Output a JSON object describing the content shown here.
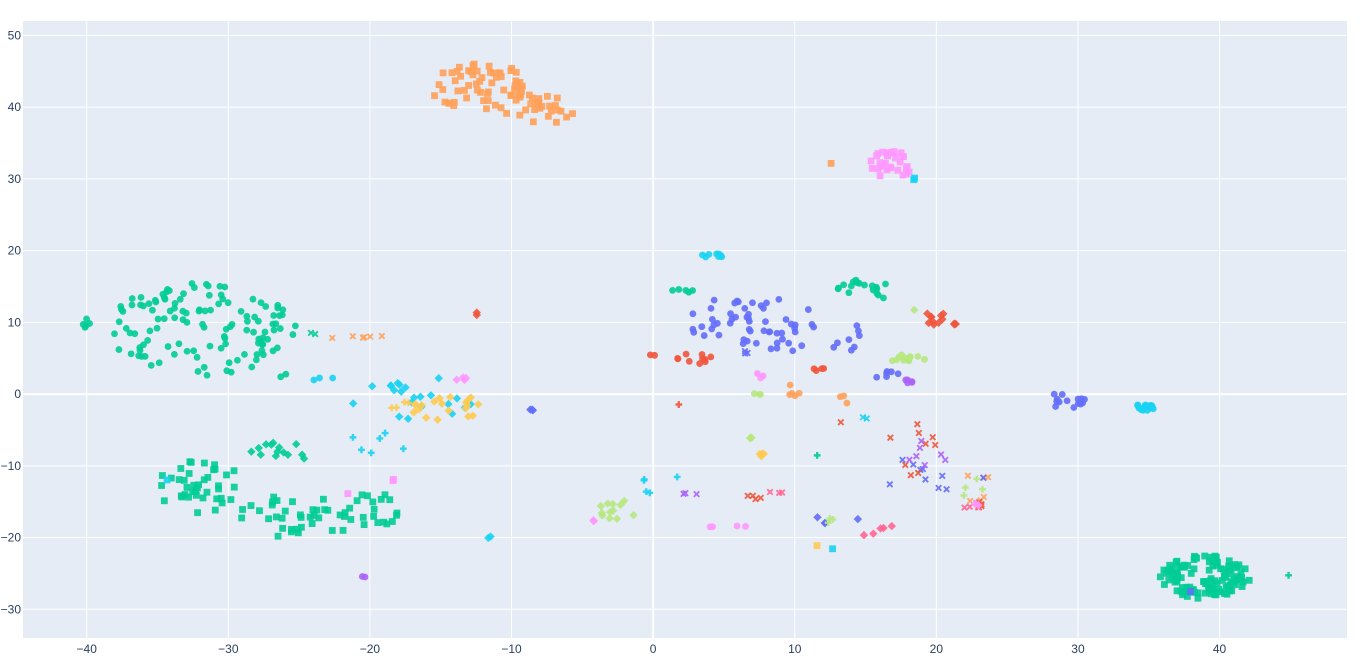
{
  "chart_data": {
    "type": "scatter",
    "xlim": [
      -44.5,
      49
    ],
    "ylim": [
      -34,
      52
    ],
    "xticks": [
      -40,
      -30,
      -20,
      -10,
      0,
      10,
      20,
      30,
      40
    ],
    "yticks": [
      -30,
      -20,
      -10,
      0,
      10,
      20,
      30,
      40,
      50
    ],
    "grid": true,
    "legend": "none",
    "colors": {
      "plot_bg": "#e5ecf6",
      "grid": "#ffffff",
      "tick_text": "#2a3f5f",
      "palette": [
        "#636efa",
        "#ef553b",
        "#00cc96",
        "#ab63fa",
        "#ffa15a",
        "#19d3f3",
        "#ff6692",
        "#b6e880",
        "#ff97ff",
        "#fecb52"
      ]
    },
    "series": [
      {
        "color": "#00cc96",
        "symbol": "circle",
        "clusters": [
          {
            "cx": -32,
            "cy": 9,
            "rx": 6.5,
            "ry": 6.5,
            "n": 110
          },
          {
            "cx": -27,
            "cy": 9,
            "rx": 2.2,
            "ry": 3.5,
            "n": 14
          },
          {
            "cx": -40,
            "cy": 10,
            "rx": 0.6,
            "ry": 0.8,
            "n": 5
          },
          {
            "cx": -26,
            "cy": 2.5,
            "rx": 0.4,
            "ry": 0.4,
            "n": 2
          },
          {
            "cx": 2,
            "cy": 14.3,
            "rx": 0.9,
            "ry": 0.3,
            "n": 5
          },
          {
            "cx": 14,
            "cy": 15,
            "rx": 1.0,
            "ry": 1.0,
            "n": 10
          },
          {
            "cx": 16,
            "cy": 14.5,
            "rx": 0.7,
            "ry": 1.2,
            "n": 8
          }
        ]
      },
      {
        "color": "#00cc96",
        "symbol": "square",
        "clusters": [
          {
            "cx": -32,
            "cy": -13,
            "rx": 3.0,
            "ry": 4.0,
            "n": 40
          },
          {
            "cx": -25,
            "cy": -17,
            "rx": 4.5,
            "ry": 3.0,
            "n": 35
          },
          {
            "cx": -20,
            "cy": -16.5,
            "rx": 2.0,
            "ry": 3.0,
            "n": 20
          },
          {
            "cx": 39,
            "cy": -25.5,
            "rx": 3.2,
            "ry": 3.0,
            "n": 120
          }
        ]
      },
      {
        "color": "#00cc96",
        "symbol": "diamond",
        "clusters": [
          {
            "cx": -26,
            "cy": -8,
            "rx": 2.5,
            "ry": 1.8,
            "n": 14
          }
        ]
      },
      {
        "color": "#00cc96",
        "symbol": "x",
        "clusters": [
          {
            "cx": -24,
            "cy": 8.5,
            "rx": 0.3,
            "ry": 0.2,
            "n": 2
          }
        ]
      },
      {
        "color": "#00cc96",
        "symbol": "cross",
        "clusters": [
          {
            "cx": 44.8,
            "cy": -25.2,
            "rx": 0.1,
            "ry": 0.1,
            "n": 1
          },
          {
            "cx": 11.5,
            "cy": -8.5,
            "rx": 0.2,
            "ry": 0.2,
            "n": 1
          }
        ]
      },
      {
        "color": "#ffa15a",
        "symbol": "square",
        "clusters": [
          {
            "cx": -12.5,
            "cy": 43,
            "rx": 3.5,
            "ry": 3.5,
            "n": 60
          },
          {
            "cx": -9,
            "cy": 40,
            "rx": 2.2,
            "ry": 2.2,
            "n": 18
          },
          {
            "cx": -7,
            "cy": 39.5,
            "rx": 1.5,
            "ry": 1.8,
            "n": 12
          },
          {
            "cx": 12.5,
            "cy": 32,
            "rx": 0.2,
            "ry": 0.2,
            "n": 1
          }
        ]
      },
      {
        "color": "#ffa15a",
        "symbol": "x",
        "clusters": [
          {
            "cx": -21,
            "cy": 8,
            "rx": 2.5,
            "ry": 0.3,
            "n": 6
          },
          {
            "cx": 23,
            "cy": -13,
            "rx": 1.5,
            "ry": 2.5,
            "n": 6
          }
        ]
      },
      {
        "color": "#ff97ff",
        "symbol": "square",
        "clusters": [
          {
            "cx": 16.8,
            "cy": 32,
            "rx": 1.5,
            "ry": 2.0,
            "n": 30
          },
          {
            "cx": -21.5,
            "cy": -14,
            "rx": 0.2,
            "ry": 0.2,
            "n": 1
          },
          {
            "cx": -18.5,
            "cy": -12,
            "rx": 0.2,
            "ry": 0.2,
            "n": 2
          }
        ]
      },
      {
        "color": "#19d3f3",
        "symbol": "square",
        "clusters": [
          {
            "cx": 18.5,
            "cy": 30,
            "rx": 0.3,
            "ry": 0.3,
            "n": 2
          },
          {
            "cx": -34.5,
            "cy": -12,
            "rx": 0.2,
            "ry": 0.2,
            "n": 1
          },
          {
            "cx": 12.5,
            "cy": -21.5,
            "rx": 0.2,
            "ry": 0.2,
            "n": 1
          }
        ]
      },
      {
        "color": "#19d3f3",
        "symbol": "circle",
        "clusters": [
          {
            "cx": 34.8,
            "cy": -1.8,
            "rx": 0.7,
            "ry": 0.6,
            "n": 22
          },
          {
            "cx": 4.2,
            "cy": 19.3,
            "rx": 0.8,
            "ry": 0.3,
            "n": 8
          },
          {
            "cx": -24,
            "cy": 2.2,
            "rx": 1.5,
            "ry": 0.3,
            "n": 3
          }
        ]
      },
      {
        "color": "#19d3f3",
        "symbol": "diamond",
        "clusters": [
          {
            "cx": -17,
            "cy": -0.5,
            "rx": 4.5,
            "ry": 3.0,
            "n": 22
          },
          {
            "cx": -11.5,
            "cy": -20,
            "rx": 0.2,
            "ry": 0.2,
            "n": 2
          }
        ]
      },
      {
        "color": "#19d3f3",
        "symbol": "cross",
        "clusters": [
          {
            "cx": -19,
            "cy": -7,
            "rx": 2.5,
            "ry": 2.5,
            "n": 6
          },
          {
            "cx": 1,
            "cy": -12,
            "rx": 2.0,
            "ry": 3.0,
            "n": 5
          }
        ]
      },
      {
        "color": "#fecb52",
        "symbol": "diamond",
        "clusters": [
          {
            "cx": -14.5,
            "cy": -2,
            "rx": 2.5,
            "ry": 2.0,
            "n": 20
          },
          {
            "cx": 7.5,
            "cy": -8.5,
            "rx": 0.4,
            "ry": 0.3,
            "n": 4
          }
        ]
      },
      {
        "color": "#fecb52",
        "symbol": "cross",
        "clusters": [
          {
            "cx": -18,
            "cy": -1.5,
            "rx": 1.0,
            "ry": 0.5,
            "n": 4
          }
        ]
      },
      {
        "color": "#636efa",
        "symbol": "circle",
        "clusters": [
          {
            "cx": 7,
            "cy": 10,
            "rx": 4.5,
            "ry": 4.0,
            "n": 50
          },
          {
            "cx": 12,
            "cy": 8,
            "rx": 3.0,
            "ry": 3.0,
            "n": 14
          },
          {
            "cx": 29,
            "cy": -1,
            "rx": 1.5,
            "ry": 1.2,
            "n": 14
          },
          {
            "cx": 17,
            "cy": 2.5,
            "rx": 1.5,
            "ry": 0.8,
            "n": 6
          }
        ]
      },
      {
        "color": "#636efa",
        "symbol": "x",
        "clusters": [
          {
            "cx": 20,
            "cy": -11,
            "rx": 4.0,
            "ry": 3.0,
            "n": 10
          },
          {
            "cx": 6.5,
            "cy": 6,
            "rx": 0.4,
            "ry": 0.4,
            "n": 3
          }
        ]
      },
      {
        "color": "#636efa",
        "symbol": "diamond",
        "clusters": [
          {
            "cx": -8.5,
            "cy": -2.3,
            "rx": 0.4,
            "ry": 0.2,
            "n": 3
          },
          {
            "cx": 13.5,
            "cy": -17.5,
            "rx": 2.0,
            "ry": 1.5,
            "n": 4
          }
        ]
      },
      {
        "color": "#ef553b",
        "symbol": "diamond",
        "clusters": [
          {
            "cx": 20,
            "cy": 10.5,
            "rx": 0.8,
            "ry": 1.2,
            "n": 10
          },
          {
            "cx": 21.5,
            "cy": 9.8,
            "rx": 0.4,
            "ry": 0.2,
            "n": 3
          },
          {
            "cx": -12.5,
            "cy": 11.2,
            "rx": 0.2,
            "ry": 0.2,
            "n": 2
          }
        ]
      },
      {
        "color": "#ef553b",
        "symbol": "circle",
        "clusters": [
          {
            "cx": 3,
            "cy": 5,
            "rx": 1.5,
            "ry": 1.0,
            "n": 10
          },
          {
            "cx": 12,
            "cy": 3.5,
            "rx": 1.0,
            "ry": 0.3,
            "n": 4
          },
          {
            "cx": 0,
            "cy": 5.5,
            "rx": 0.2,
            "ry": 0.2,
            "n": 2
          }
        ]
      },
      {
        "color": "#ef553b",
        "symbol": "x",
        "clusters": [
          {
            "cx": 16,
            "cy": -8,
            "rx": 4.0,
            "ry": 6.0,
            "n": 10
          },
          {
            "cx": 23,
            "cy": -15.5,
            "rx": 1.0,
            "ry": 0.5,
            "n": 5
          },
          {
            "cx": 7.5,
            "cy": -14.3,
            "rx": 1.0,
            "ry": 0.4,
            "n": 4
          }
        ]
      },
      {
        "color": "#ef553b",
        "symbol": "cross",
        "clusters": [
          {
            "cx": 2,
            "cy": -1.5,
            "rx": 0.2,
            "ry": 0.2,
            "n": 1
          }
        ]
      },
      {
        "color": "#ab63fa",
        "symbol": "circle",
        "clusters": [
          {
            "cx": -20.5,
            "cy": -25.5,
            "rx": 0.2,
            "ry": 0.1,
            "n": 2
          },
          {
            "cx": 18,
            "cy": 1.8,
            "rx": 0.6,
            "ry": 0.3,
            "n": 5
          }
        ]
      },
      {
        "color": "#ab63fa",
        "symbol": "x",
        "clusters": [
          {
            "cx": 19,
            "cy": -9,
            "rx": 2.0,
            "ry": 3.0,
            "n": 7
          },
          {
            "cx": 2.5,
            "cy": -14,
            "rx": 0.8,
            "ry": 0.4,
            "n": 3
          }
        ]
      },
      {
        "color": "#ff6692",
        "symbol": "x",
        "clusters": [
          {
            "cx": 9,
            "cy": -13.5,
            "rx": 1.0,
            "ry": 0.3,
            "n": 3
          },
          {
            "cx": 22.5,
            "cy": -15.5,
            "rx": 0.8,
            "ry": 0.6,
            "n": 4
          }
        ]
      },
      {
        "color": "#ff6692",
        "symbol": "diamond",
        "clusters": [
          {
            "cx": 15.5,
            "cy": -18.8,
            "rx": 1.5,
            "ry": 1.0,
            "n": 5
          }
        ]
      },
      {
        "color": "#ff97ff",
        "symbol": "circle",
        "clusters": [
          {
            "cx": 5.5,
            "cy": -18.5,
            "rx": 1.5,
            "ry": 0.3,
            "n": 4
          },
          {
            "cx": 7.5,
            "cy": 2.5,
            "rx": 0.3,
            "ry": 0.5,
            "n": 3
          }
        ]
      },
      {
        "color": "#ff97ff",
        "symbol": "diamond",
        "clusters": [
          {
            "cx": -13.5,
            "cy": 2.2,
            "rx": 0.5,
            "ry": 0.3,
            "n": 4
          },
          {
            "cx": -4.5,
            "cy": -17.5,
            "rx": 0.5,
            "ry": 0.3,
            "n": 2
          },
          {
            "cx": 23,
            "cy": -15,
            "rx": 0.5,
            "ry": 0.5,
            "n": 2
          }
        ]
      },
      {
        "color": "#b6e880",
        "symbol": "circle",
        "clusters": [
          {
            "cx": 18,
            "cy": 4.8,
            "rx": 1.2,
            "ry": 0.8,
            "n": 12
          },
          {
            "cx": 7.5,
            "cy": 0,
            "rx": 0.4,
            "ry": 0.3,
            "n": 3
          }
        ]
      },
      {
        "color": "#b6e880",
        "symbol": "diamond",
        "clusters": [
          {
            "cx": -2.5,
            "cy": -16,
            "rx": 1.5,
            "ry": 1.5,
            "n": 12
          },
          {
            "cx": 7,
            "cy": -6,
            "rx": 0.3,
            "ry": 0.4,
            "n": 3
          },
          {
            "cx": 18.5,
            "cy": 11.8,
            "rx": 0.2,
            "ry": 0.2,
            "n": 1
          }
        ]
      },
      {
        "color": "#b6e880",
        "symbol": "cross",
        "clusters": [
          {
            "cx": 22.5,
            "cy": -13,
            "rx": 1.0,
            "ry": 1.5,
            "n": 4
          },
          {
            "cx": 12,
            "cy": -18,
            "rx": 1.0,
            "ry": 0.8,
            "n": 3
          }
        ]
      },
      {
        "color": "#636efa",
        "symbol": "square",
        "clusters": [
          {
            "cx": 38,
            "cy": -27.5,
            "rx": 0.3,
            "ry": 0.3,
            "n": 1
          }
        ]
      },
      {
        "color": "#ffa15a",
        "symbol": "circle",
        "clusters": [
          {
            "cx": 10,
            "cy": 0.5,
            "rx": 0.5,
            "ry": 1.5,
            "n": 5
          },
          {
            "cx": 13.5,
            "cy": -0.5,
            "rx": 0.3,
            "ry": 1.0,
            "n": 3
          }
        ]
      },
      {
        "color": "#19d3f3",
        "symbol": "x",
        "clusters": [
          {
            "cx": 15,
            "cy": -3,
            "rx": 0.5,
            "ry": 0.5,
            "n": 2
          }
        ]
      },
      {
        "color": "#fecb52",
        "symbol": "square",
        "clusters": [
          {
            "cx": 11.5,
            "cy": -21,
            "rx": 0.2,
            "ry": 0.2,
            "n": 1
          }
        ]
      }
    ]
  }
}
